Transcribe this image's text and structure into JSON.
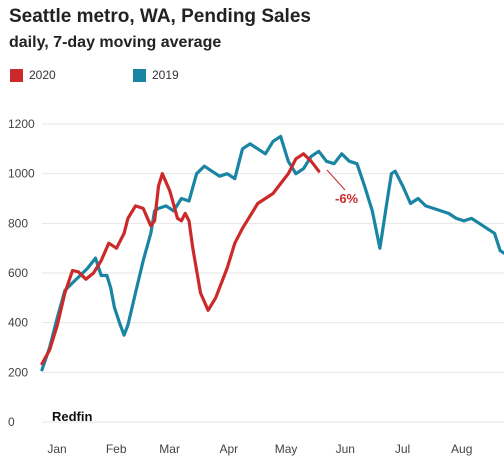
{
  "chart_data": {
    "type": "line",
    "title": "Seattle metro, WA, Pending Sales",
    "subtitle": "daily, 7-day moving average",
    "source": "Redfin",
    "xlabel": "",
    "ylabel": "",
    "ylim": [
      0,
      1200
    ],
    "yticks": [
      0,
      200,
      400,
      600,
      800,
      1000,
      1200
    ],
    "x_tick_labels": [
      "Jan",
      "Feb",
      "Mar",
      "Apr",
      "May",
      "Jun",
      "Jul",
      "Aug"
    ],
    "grid": true,
    "legend_position": "top-left",
    "x_unit": "day of year",
    "series": [
      {
        "name": "2020",
        "color": "#cc2a2a",
        "x": [
          1,
          5,
          9,
          13,
          17,
          20,
          24,
          28,
          32,
          36,
          40,
          44,
          46,
          50,
          54,
          58,
          60,
          62,
          64,
          68,
          72,
          74,
          76,
          78,
          80,
          84,
          88,
          92,
          94,
          98,
          102,
          106,
          110,
          114,
          118,
          122,
          126,
          130,
          134,
          138,
          142,
          144,
          146
        ],
        "values": [
          235,
          290,
          390,
          520,
          610,
          605,
          575,
          600,
          650,
          720,
          700,
          760,
          820,
          870,
          860,
          790,
          810,
          950,
          1000,
          930,
          820,
          810,
          840,
          810,
          700,
          520,
          450,
          500,
          540,
          620,
          720,
          780,
          830,
          880,
          900,
          920,
          960,
          1000,
          1060,
          1080,
          1050,
          1030,
          1010
        ]
      },
      {
        "name": "2019",
        "color": "#1a84a3",
        "x": [
          1,
          5,
          9,
          13,
          17,
          21,
          25,
          29,
          32,
          35,
          37,
          39,
          42,
          44,
          46,
          50,
          54,
          58,
          60,
          62,
          66,
          70,
          74,
          78,
          82,
          86,
          90,
          94,
          98,
          102,
          106,
          110,
          114,
          118,
          122,
          126,
          130,
          134,
          138,
          142,
          146,
          150,
          154,
          158,
          162,
          166,
          170,
          174,
          178,
          182,
          184,
          186,
          190,
          194,
          198,
          202,
          206,
          210,
          214,
          218,
          222,
          226,
          230,
          234,
          238,
          241,
          243
        ],
        "values": [
          210,
          300,
          420,
          530,
          560,
          590,
          620,
          660,
          590,
          590,
          540,
          460,
          390,
          350,
          390,
          520,
          650,
          760,
          850,
          860,
          870,
          850,
          900,
          890,
          1000,
          1030,
          1010,
          990,
          1000,
          980,
          1100,
          1120,
          1100,
          1080,
          1130,
          1150,
          1050,
          1000,
          1020,
          1070,
          1090,
          1050,
          1040,
          1080,
          1050,
          1040,
          950,
          850,
          700,
          900,
          1000,
          1010,
          950,
          880,
          900,
          870,
          860,
          850,
          840,
          820,
          810,
          820,
          800,
          780,
          760,
          690,
          680
        ]
      }
    ],
    "annotations": [
      {
        "text": "-6%",
        "color": "#cc2a2a"
      }
    ]
  }
}
